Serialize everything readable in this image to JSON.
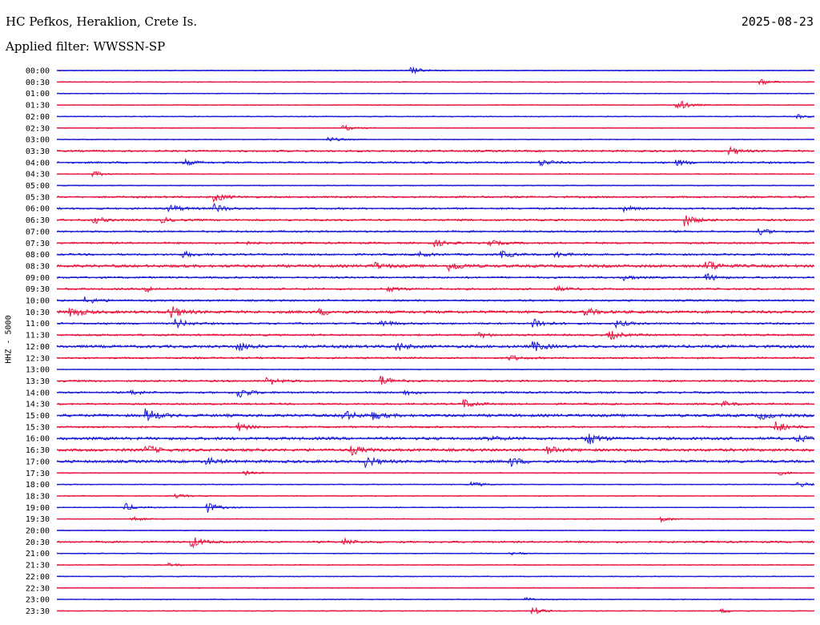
{
  "header": {
    "station": "HC Pefkos, Heraklion, Crete Is.",
    "filter": "Applied filter: WWSSN-SP",
    "date": "2025-08-23",
    "channel_label": "HHZ - 5000"
  },
  "colors": {
    "odd": "#1a1ad6",
    "even": "#e8153f"
  },
  "chart_data": {
    "type": "line",
    "title": "HC Pefkos, Heraklion, Crete Is.",
    "subtitle": "Applied filter: WWSSN-SP",
    "ylabel": "HHZ - 5000",
    "rows": [
      {
        "label": "00:00",
        "color": "blue",
        "noise": 1,
        "events": [
          {
            "x": 0.47,
            "a": 4
          }
        ]
      },
      {
        "label": "00:30",
        "color": "red",
        "noise": 1,
        "events": [
          {
            "x": 0.93,
            "a": 3
          }
        ]
      },
      {
        "label": "01:00",
        "color": "blue",
        "noise": 1,
        "events": []
      },
      {
        "label": "01:30",
        "color": "red",
        "noise": 1,
        "events": [
          {
            "x": 0.82,
            "a": 7
          }
        ]
      },
      {
        "label": "02:00",
        "color": "blue",
        "noise": 1,
        "events": [
          {
            "x": 0.98,
            "a": 2
          }
        ]
      },
      {
        "label": "02:30",
        "color": "red",
        "noise": 1,
        "events": [
          {
            "x": 0.38,
            "a": 3
          }
        ]
      },
      {
        "label": "03:00",
        "color": "blue",
        "noise": 1,
        "events": [
          {
            "x": 0.36,
            "a": 3
          }
        ]
      },
      {
        "label": "03:30",
        "color": "red",
        "noise": 2,
        "events": [
          {
            "x": 0.89,
            "a": 4
          }
        ]
      },
      {
        "label": "04:00",
        "color": "blue",
        "noise": 2,
        "events": [
          {
            "x": 0.17,
            "a": 3
          },
          {
            "x": 0.64,
            "a": 4
          },
          {
            "x": 0.82,
            "a": 3
          }
        ]
      },
      {
        "label": "04:30",
        "color": "red",
        "noise": 1,
        "events": [
          {
            "x": 0.05,
            "a": 3
          }
        ]
      },
      {
        "label": "05:00",
        "color": "blue",
        "noise": 1,
        "events": []
      },
      {
        "label": "05:30",
        "color": "red",
        "noise": 2,
        "events": [
          {
            "x": 0.21,
            "a": 5
          }
        ]
      },
      {
        "label": "06:00",
        "color": "blue",
        "noise": 2,
        "events": [
          {
            "x": 0.15,
            "a": 5
          },
          {
            "x": 0.21,
            "a": 5
          },
          {
            "x": 0.75,
            "a": 3
          }
        ]
      },
      {
        "label": "06:30",
        "color": "red",
        "noise": 2,
        "events": [
          {
            "x": 0.05,
            "a": 4
          },
          {
            "x": 0.14,
            "a": 3
          },
          {
            "x": 0.83,
            "a": 7
          }
        ]
      },
      {
        "label": "07:00",
        "color": "blue",
        "noise": 2,
        "events": [
          {
            "x": 0.93,
            "a": 3
          }
        ]
      },
      {
        "label": "07:30",
        "color": "red",
        "noise": 2,
        "events": [
          {
            "x": 0.24,
            "a": 3
          },
          {
            "x": 0.5,
            "a": 4
          },
          {
            "x": 0.57,
            "a": 4
          }
        ]
      },
      {
        "label": "08:00",
        "color": "blue",
        "noise": 2,
        "events": [
          {
            "x": 0.17,
            "a": 3
          },
          {
            "x": 0.48,
            "a": 3
          },
          {
            "x": 0.59,
            "a": 4
          },
          {
            "x": 0.66,
            "a": 3
          }
        ]
      },
      {
        "label": "08:30",
        "color": "red",
        "noise": 3,
        "events": [
          {
            "x": 0.42,
            "a": 4
          },
          {
            "x": 0.52,
            "a": 6
          },
          {
            "x": 0.86,
            "a": 7
          }
        ]
      },
      {
        "label": "09:00",
        "color": "blue",
        "noise": 2,
        "events": [
          {
            "x": 0.75,
            "a": 3
          },
          {
            "x": 0.86,
            "a": 4
          }
        ]
      },
      {
        "label": "09:30",
        "color": "red",
        "noise": 2,
        "events": [
          {
            "x": 0.12,
            "a": 3
          },
          {
            "x": 0.44,
            "a": 3
          },
          {
            "x": 0.66,
            "a": 3
          }
        ]
      },
      {
        "label": "10:00",
        "color": "blue",
        "noise": 2,
        "events": [
          {
            "x": 0.04,
            "a": 4
          }
        ]
      },
      {
        "label": "10:30",
        "color": "red",
        "noise": 3,
        "events": [
          {
            "x": 0.02,
            "a": 6
          },
          {
            "x": 0.15,
            "a": 8
          },
          {
            "x": 0.35,
            "a": 3
          },
          {
            "x": 0.7,
            "a": 4
          }
        ]
      },
      {
        "label": "11:00",
        "color": "blue",
        "noise": 2,
        "events": [
          {
            "x": 0.16,
            "a": 5
          },
          {
            "x": 0.43,
            "a": 4
          },
          {
            "x": 0.63,
            "a": 7
          },
          {
            "x": 0.74,
            "a": 4
          }
        ]
      },
      {
        "label": "11:30",
        "color": "red",
        "noise": 2,
        "events": [
          {
            "x": 0.56,
            "a": 3
          },
          {
            "x": 0.73,
            "a": 6
          }
        ]
      },
      {
        "label": "12:00",
        "color": "blue",
        "noise": 3,
        "events": [
          {
            "x": 0.24,
            "a": 5
          },
          {
            "x": 0.45,
            "a": 4
          },
          {
            "x": 0.63,
            "a": 6
          }
        ]
      },
      {
        "label": "12:30",
        "color": "red",
        "noise": 2,
        "events": [
          {
            "x": 0.6,
            "a": 3
          }
        ]
      },
      {
        "label": "13:00",
        "color": "blue",
        "noise": 1,
        "events": []
      },
      {
        "label": "13:30",
        "color": "red",
        "noise": 2,
        "events": [
          {
            "x": 0.28,
            "a": 5
          },
          {
            "x": 0.43,
            "a": 6
          }
        ]
      },
      {
        "label": "14:00",
        "color": "blue",
        "noise": 2,
        "events": [
          {
            "x": 0.1,
            "a": 3
          },
          {
            "x": 0.24,
            "a": 7
          },
          {
            "x": 0.46,
            "a": 3
          }
        ]
      },
      {
        "label": "14:30",
        "color": "red",
        "noise": 2,
        "events": [
          {
            "x": 0.54,
            "a": 5
          },
          {
            "x": 0.88,
            "a": 3
          }
        ]
      },
      {
        "label": "15:00",
        "color": "blue",
        "noise": 3,
        "events": [
          {
            "x": 0.12,
            "a": 8
          },
          {
            "x": 0.38,
            "a": 6
          },
          {
            "x": 0.42,
            "a": 4
          },
          {
            "x": 0.93,
            "a": 4
          }
        ]
      },
      {
        "label": "15:30",
        "color": "red",
        "noise": 2,
        "events": [
          {
            "x": 0.24,
            "a": 5
          },
          {
            "x": 0.95,
            "a": 7
          }
        ]
      },
      {
        "label": "16:00",
        "color": "blue",
        "noise": 3,
        "events": [
          {
            "x": 0.57,
            "a": 3
          },
          {
            "x": 0.7,
            "a": 9
          },
          {
            "x": 0.98,
            "a": 4
          }
        ]
      },
      {
        "label": "16:30",
        "color": "red",
        "noise": 3,
        "events": [
          {
            "x": 0.12,
            "a": 5
          },
          {
            "x": 0.39,
            "a": 5
          },
          {
            "x": 0.65,
            "a": 4
          }
        ]
      },
      {
        "label": "17:00",
        "color": "blue",
        "noise": 3,
        "events": [
          {
            "x": 0.2,
            "a": 4
          },
          {
            "x": 0.41,
            "a": 6
          },
          {
            "x": 0.6,
            "a": 5
          }
        ]
      },
      {
        "label": "17:30",
        "color": "red",
        "noise": 1,
        "events": [
          {
            "x": 0.25,
            "a": 3
          },
          {
            "x": 0.95,
            "a": 3
          }
        ]
      },
      {
        "label": "18:00",
        "color": "blue",
        "noise": 1,
        "events": [
          {
            "x": 0.55,
            "a": 3
          },
          {
            "x": 0.98,
            "a": 3
          }
        ]
      },
      {
        "label": "18:30",
        "color": "red",
        "noise": 1,
        "events": [
          {
            "x": 0.16,
            "a": 2
          }
        ]
      },
      {
        "label": "19:00",
        "color": "blue",
        "noise": 1,
        "events": [
          {
            "x": 0.09,
            "a": 5
          },
          {
            "x": 0.2,
            "a": 6
          }
        ]
      },
      {
        "label": "19:30",
        "color": "red",
        "noise": 1,
        "events": [
          {
            "x": 0.1,
            "a": 3
          },
          {
            "x": 0.8,
            "a": 3
          }
        ]
      },
      {
        "label": "20:00",
        "color": "blue",
        "noise": 1,
        "events": []
      },
      {
        "label": "20:30",
        "color": "red",
        "noise": 2,
        "events": [
          {
            "x": 0.18,
            "a": 6
          },
          {
            "x": 0.38,
            "a": 4
          }
        ]
      },
      {
        "label": "21:00",
        "color": "blue",
        "noise": 1,
        "events": [
          {
            "x": 0.6,
            "a": 2
          }
        ]
      },
      {
        "label": "21:30",
        "color": "red",
        "noise": 1,
        "events": [
          {
            "x": 0.15,
            "a": 2
          }
        ]
      },
      {
        "label": "22:00",
        "color": "blue",
        "noise": 1,
        "events": []
      },
      {
        "label": "22:30",
        "color": "red",
        "noise": 1,
        "events": []
      },
      {
        "label": "23:00",
        "color": "blue",
        "noise": 1,
        "events": [
          {
            "x": 0.62,
            "a": 2
          }
        ]
      },
      {
        "label": "23:30",
        "color": "red",
        "noise": 1,
        "events": [
          {
            "x": 0.63,
            "a": 4
          },
          {
            "x": 0.88,
            "a": 2
          }
        ]
      }
    ]
  }
}
